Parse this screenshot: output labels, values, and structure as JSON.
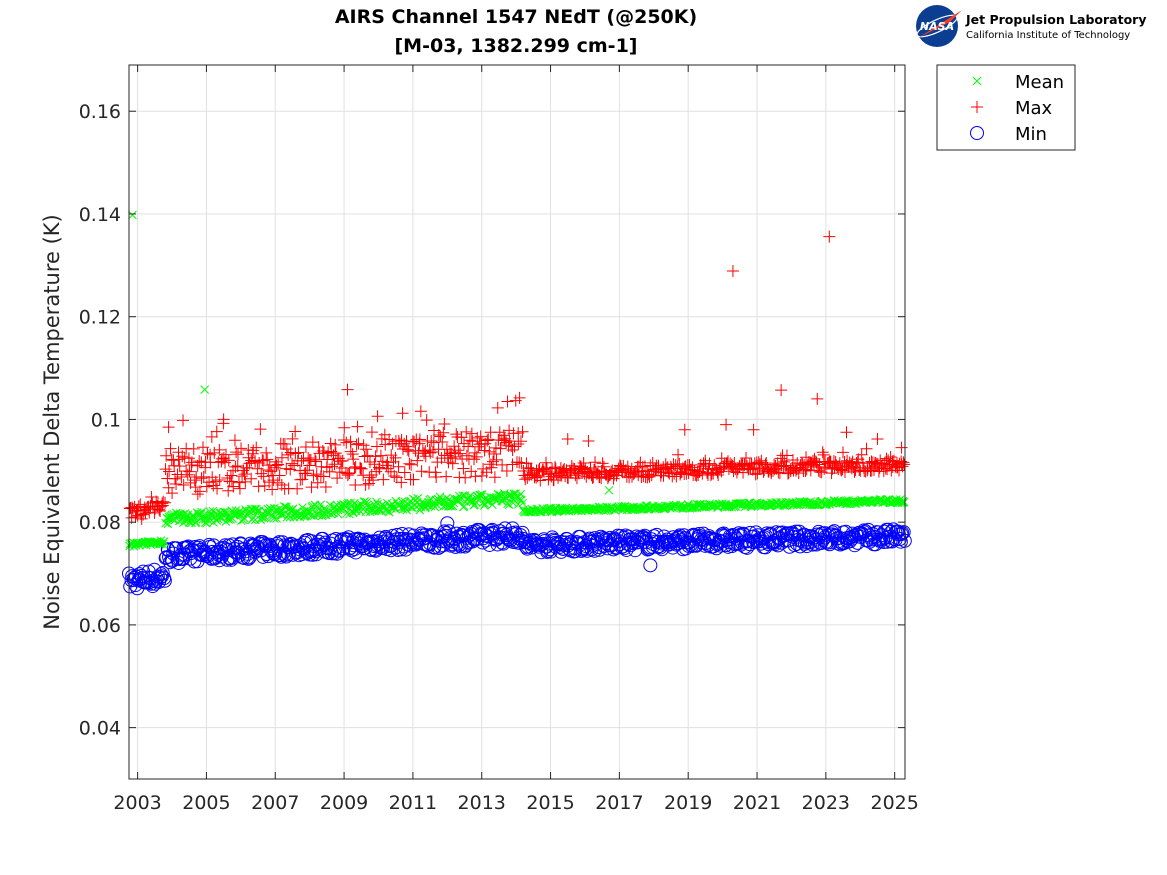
{
  "logo": {
    "name": "Jet Propulsion Laboratory",
    "subtitle": "California Institute of Technology",
    "badge": "NASA"
  },
  "chart_data": {
    "type": "scatter",
    "title": [
      "AIRS Channel 1547 NEdT (@250K)",
      "[M-03, 1382.299 cm-1]"
    ],
    "xlabel": "",
    "ylabel": "Noise Equivalent Delta Temperature (K)",
    "xlim": [
      2002.75,
      2025.3
    ],
    "ylim": [
      0.03,
      0.169
    ],
    "xticks": [
      2003,
      2005,
      2007,
      2009,
      2011,
      2013,
      2015,
      2017,
      2019,
      2021,
      2023,
      2025
    ],
    "yticks": [
      0.04,
      0.06,
      0.08,
      0.1,
      0.12,
      0.14,
      0.16
    ],
    "ytick_labels": [
      "0.04",
      "0.06",
      "0.08",
      "0.1",
      "0.12",
      "0.14",
      "0.16"
    ],
    "grid": true,
    "legend_position": "outside-top-right",
    "series": [
      {
        "name": "Mean",
        "marker": "x",
        "color": "#00ff00",
        "segments": [
          {
            "x": [
              2002.75,
              2003.8
            ],
            "y": [
              0.0755,
              0.0762
            ],
            "spread": 0.0004
          },
          {
            "x": [
              2003.8,
              2014.2
            ],
            "y": [
              0.0805,
              0.0847
            ],
            "spread": 0.0012
          },
          {
            "x": [
              2014.2,
              2025.3
            ],
            "y": [
              0.0822,
              0.0842
            ],
            "spread": 0.0004
          }
        ],
        "outliers": [
          [
            2002.85,
            0.1398
          ],
          [
            2004.95,
            0.1058
          ],
          [
            2016.7,
            0.0862
          ]
        ]
      },
      {
        "name": "Max",
        "marker": "+",
        "color": "#ff0000",
        "segments": [
          {
            "x": [
              2002.75,
              2003.8
            ],
            "y": [
              0.0815,
              0.0832
            ],
            "spread": 0.0015
          },
          {
            "x": [
              2003.8,
              2014.2
            ],
            "y": [
              0.0895,
              0.0935
            ],
            "spread": 0.0045
          },
          {
            "x": [
              2014.2,
              2025.3
            ],
            "y": [
              0.0893,
              0.0912
            ],
            "spread": 0.0013
          }
        ],
        "outliers": [
          [
            2009.1,
            0.1058
          ],
          [
            2003.9,
            0.0985
          ],
          [
            2005.5,
            0.1
          ],
          [
            2010.7,
            0.1012
          ],
          [
            2013.75,
            0.1035
          ],
          [
            2014.1,
            0.1042
          ],
          [
            2015.5,
            0.0962
          ],
          [
            2016.1,
            0.0958
          ],
          [
            2018.9,
            0.098
          ],
          [
            2020.1,
            0.099
          ],
          [
            2020.3,
            0.1289
          ],
          [
            2020.9,
            0.098
          ],
          [
            2021.7,
            0.1057
          ],
          [
            2022.75,
            0.104
          ],
          [
            2023.1,
            0.1356
          ],
          [
            2023.6,
            0.0975
          ],
          [
            2024.5,
            0.0962
          ],
          [
            2025.2,
            0.0945
          ]
        ]
      },
      {
        "name": "Min",
        "marker": "o",
        "color": "#0000ff",
        "segments": [
          {
            "x": [
              2002.75,
              2003.8
            ],
            "y": [
              0.0685,
              0.0695
            ],
            "spread": 0.0018
          },
          {
            "x": [
              2003.8,
              2014.2
            ],
            "y": [
              0.0735,
              0.0775
            ],
            "spread": 0.0016
          },
          {
            "x": [
              2014.2,
              2025.3
            ],
            "y": [
              0.0755,
              0.0772
            ],
            "spread": 0.0015
          }
        ],
        "outliers": [
          [
            2017.9,
            0.0716
          ],
          [
            2012.0,
            0.0798
          ]
        ]
      }
    ]
  }
}
